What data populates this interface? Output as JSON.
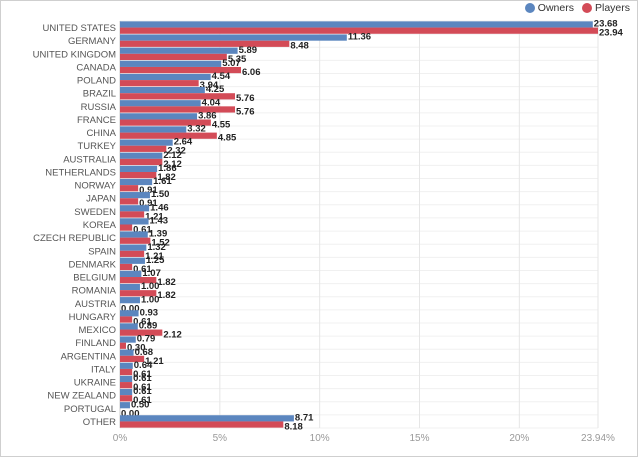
{
  "chart_data": {
    "type": "bar",
    "orientation": "horizontal",
    "categories": [
      "UNITED STATES",
      "GERMANY",
      "UNITED KINGDOM",
      "CANADA",
      "POLAND",
      "BRAZIL",
      "RUSSIA",
      "FRANCE",
      "CHINA",
      "TURKEY",
      "AUSTRALIA",
      "NETHERLANDS",
      "NORWAY",
      "JAPAN",
      "SWEDEN",
      "KOREA",
      "CZECH REPUBLIC",
      "SPAIN",
      "DENMARK",
      "BELGIUM",
      "ROMANIA",
      "AUSTRIA",
      "HUNGARY",
      "MEXICO",
      "FINLAND",
      "ARGENTINA",
      "ITALY",
      "UKRAINE",
      "NEW ZEALAND",
      "PORTUGAL",
      "OTHER"
    ],
    "series": [
      {
        "name": "Owners",
        "color": "#5b86bf",
        "values": [
          23.68,
          11.36,
          5.89,
          5.07,
          4.54,
          4.25,
          4.04,
          3.86,
          3.32,
          2.64,
          2.12,
          1.86,
          1.61,
          1.5,
          1.46,
          1.43,
          1.39,
          1.32,
          1.25,
          1.07,
          1.0,
          1.0,
          0.93,
          0.89,
          0.79,
          0.68,
          0.64,
          0.61,
          0.61,
          0.5,
          8.71
        ],
        "labels": [
          "23.68",
          "11.36",
          "5.89",
          "5.07",
          "4.54",
          "4.25",
          "4.04",
          "3.86",
          "3.32",
          "2.64",
          "2.12",
          "1.86",
          "1.61",
          "1.50",
          "1.46",
          "1.43",
          "1.39",
          "1.32",
          "1.25",
          "1.07",
          "1.00",
          "1.00",
          "0.93",
          "0.89",
          "0.79",
          "0.68",
          "0.64",
          "0.61",
          "0.61",
          "0.50",
          "8.71"
        ]
      },
      {
        "name": "Players",
        "color": "#d34b57",
        "values": [
          23.94,
          8.48,
          5.35,
          6.06,
          3.94,
          5.76,
          5.76,
          4.55,
          4.85,
          2.32,
          2.12,
          1.82,
          0.91,
          0.91,
          1.21,
          0.61,
          1.52,
          1.21,
          0.61,
          1.82,
          1.82,
          0.0,
          0.61,
          2.12,
          0.3,
          1.21,
          0.61,
          0.61,
          0.61,
          0.0,
          8.18
        ],
        "labels": [
          "23.94",
          "8.48",
          "5.35",
          "6.06",
          "3.94",
          "5.76",
          "5.76",
          "4.55",
          "4.85",
          "2.32",
          "2.12",
          "1.82",
          "0.91",
          "0.91",
          "1.21",
          "0.61",
          "1.52",
          "1.21",
          "0.61",
          "1.82",
          "1.82",
          "0.00",
          "0.61",
          "2.12",
          "0.30",
          "1.21",
          "0.61",
          "0.61",
          "0.61",
          "0.00",
          "8.18"
        ]
      }
    ],
    "xlim": [
      0,
      23.94
    ],
    "xticks": [
      0,
      5,
      10,
      15,
      20,
      23.94
    ],
    "xtick_labels": [
      "0%",
      "5%",
      "10%",
      "15%",
      "20%",
      "23.94%"
    ],
    "grid": true,
    "legend_position": "top-right"
  },
  "legend": {
    "owners_label": "Owners",
    "players_label": "Players"
  }
}
